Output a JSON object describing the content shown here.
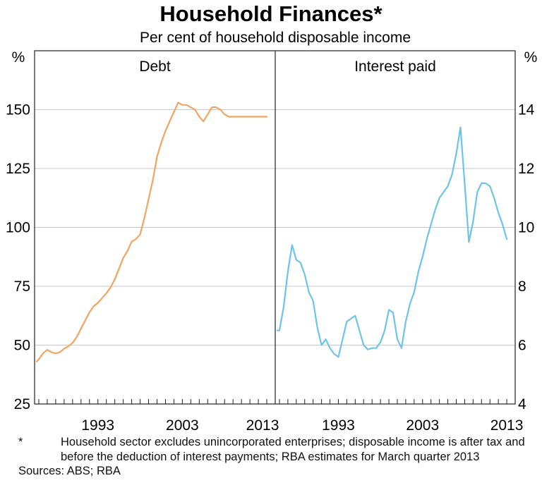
{
  "chart_data": {
    "type": "line",
    "title": "Household Finances*",
    "subtitle": "Per cent of household disposable income",
    "x_range": [
      1985.5,
      2014.0
    ],
    "x_ticks": [
      1993,
      2003,
      2013
    ],
    "panels": [
      {
        "label": "Debt",
        "unit": "%",
        "axis_side": "left",
        "ylim": [
          25,
          175
        ],
        "y_ticks": [
          25,
          50,
          75,
          100,
          125,
          150
        ],
        "color": "#F0A562",
        "series": {
          "name": "Debt",
          "x": [
            1985.75,
            1986,
            1986.5,
            1987,
            1987.5,
            1988,
            1988.5,
            1989,
            1989.5,
            1990,
            1990.5,
            1991,
            1991.5,
            1992,
            1992.5,
            1993,
            1993.5,
            1994,
            1994.5,
            1995,
            1995.5,
            1996,
            1996.5,
            1997,
            1997.5,
            1998,
            1998.5,
            1999,
            1999.5,
            2000,
            2000.5,
            2001,
            2001.5,
            2002,
            2002.5,
            2003,
            2003.5,
            2004,
            2004.5,
            2005,
            2005.5,
            2006,
            2006.5,
            2007,
            2007.5,
            2008,
            2008.5,
            2009,
            2009.5,
            2010,
            2010.5,
            2011,
            2011.5,
            2012,
            2012.5,
            2013
          ],
          "values": [
            43,
            44,
            46.5,
            48,
            47,
            46.5,
            47,
            48.5,
            49.5,
            51,
            53.5,
            57,
            60.5,
            64,
            66.5,
            68,
            70,
            72,
            74.5,
            78,
            82.5,
            87,
            90,
            94,
            95,
            97,
            104,
            112,
            120,
            130,
            136,
            141,
            145,
            149,
            153,
            152,
            152,
            151,
            150,
            147,
            145,
            148,
            151,
            151,
            150,
            148,
            147,
            147,
            147,
            147,
            147,
            147,
            147,
            147,
            147,
            147
          ]
        }
      },
      {
        "label": "Interest paid",
        "unit": "%",
        "axis_side": "right",
        "ylim": [
          4,
          16
        ],
        "y_ticks": [
          4,
          6,
          8,
          10,
          12,
          14
        ],
        "color": "#6EC4E8",
        "series": {
          "name": "Interest paid",
          "x": [
            1985.75,
            1986,
            1986.5,
            1987,
            1987.5,
            1988,
            1988.5,
            1989,
            1989.5,
            1990,
            1990.5,
            1991,
            1991.5,
            1992,
            1992.5,
            1993,
            1993.5,
            1994,
            1994.5,
            1995,
            1995.5,
            1996,
            1996.5,
            1997,
            1997.5,
            1998,
            1998.5,
            1999,
            1999.5,
            2000,
            2000.5,
            2001,
            2001.5,
            2002,
            2002.5,
            2003,
            2003.5,
            2004,
            2004.5,
            2005,
            2005.5,
            2006,
            2006.5,
            2007,
            2007.5,
            2008,
            2008.5,
            2009,
            2009.5,
            2010,
            2010.5,
            2011,
            2011.5,
            2012,
            2012.5,
            2013
          ],
          "values": [
            6.5,
            6.5,
            7.3,
            8.5,
            9.4,
            8.9,
            8.8,
            8.4,
            7.8,
            7.5,
            6.6,
            6.0,
            6.2,
            5.9,
            5.7,
            5.6,
            6.2,
            6.8,
            6.9,
            7.0,
            6.5,
            6.0,
            5.85,
            5.9,
            5.9,
            6.1,
            6.5,
            7.2,
            7.1,
            6.2,
            5.9,
            6.8,
            7.4,
            7.8,
            8.5,
            9.0,
            9.6,
            10.1,
            10.6,
            11.0,
            11.2,
            11.4,
            11.8,
            12.5,
            13.4,
            11.5,
            9.5,
            10.2,
            11.2,
            11.5,
            11.5,
            11.4,
            11.0,
            10.5,
            10.1,
            9.6
          ]
        }
      }
    ]
  },
  "notes": {
    "asterisk": "*",
    "footnote": "Household sector excludes unincorporated enterprises; disposable income is after tax and before the deduction of interest payments; RBA estimates for March quarter 2013",
    "sources": "Sources: ABS; RBA"
  }
}
